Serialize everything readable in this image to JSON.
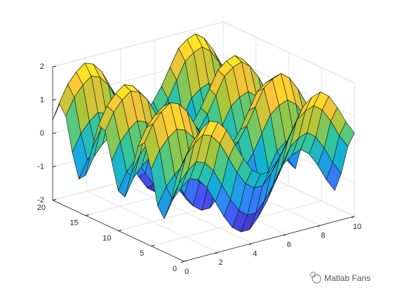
{
  "chart_data": {
    "type": "surface",
    "x": [
      0,
      0.5,
      1,
      1.5,
      2,
      2.5,
      3,
      3.5,
      4,
      4.5,
      5,
      5.5,
      6,
      6.5,
      7,
      7.5,
      8,
      8.5,
      9,
      9.5,
      10
    ],
    "y": [
      0,
      1,
      2,
      3,
      4,
      5,
      6,
      7,
      8,
      9,
      10,
      11,
      12,
      13,
      14,
      15,
      16,
      17,
      18,
      19,
      20
    ],
    "z": [
      [
        1,
        1.5,
        1.8,
        2,
        1.9,
        1.6,
        1.1,
        0.6,
        0.2,
        0,
        0,
        0.3,
        0.7,
        1.2,
        1.7,
        1.9,
        2,
        1.8,
        1.4,
        0.9,
        0.5
      ],
      [
        0.5,
        1,
        1.3,
        1.5,
        1.4,
        1.1,
        0.6,
        0.1,
        -0.3,
        -0.5,
        -0.5,
        -0.2,
        0.2,
        0.7,
        1.2,
        1.4,
        1.5,
        1.3,
        0.9,
        0.4,
        0
      ],
      [
        -0.4,
        0.1,
        0.4,
        0.6,
        0.5,
        0.2,
        -0.3,
        -0.8,
        -1.2,
        -1.4,
        -1.4,
        -1.1,
        -0.7,
        -0.2,
        0.3,
        0.5,
        0.6,
        0.4,
        0,
        -0.5,
        -0.9
      ],
      [
        -1,
        -0.5,
        -0.2,
        0,
        -0.1,
        -0.4,
        -0.9,
        -1.4,
        -1.8,
        -2,
        -2,
        -1.7,
        -1.3,
        -0.8,
        -0.3,
        -0.1,
        0,
        -0.2,
        -0.6,
        -1.1,
        -1.5
      ],
      [
        -0.7,
        -0.2,
        0.1,
        0.3,
        0.2,
        -0.1,
        -0.6,
        -1.1,
        -1.5,
        -1.7,
        -1.7,
        -1.4,
        -1,
        -0.5,
        0,
        0.2,
        0.3,
        0.1,
        -0.3,
        -0.8,
        -1.2
      ],
      [
        0.3,
        0.8,
        1.1,
        1.3,
        1.2,
        0.9,
        0.4,
        -0.1,
        -0.5,
        -0.7,
        -0.7,
        -0.4,
        0,
        0.5,
        1,
        1.2,
        1.3,
        1.1,
        0.7,
        0.2,
        -0.2
      ],
      [
        1,
        1.5,
        1.8,
        2,
        1.9,
        1.6,
        1.1,
        0.6,
        0.2,
        0,
        0,
        0.3,
        0.7,
        1.2,
        1.7,
        1.9,
        2,
        1.8,
        1.4,
        0.9,
        0.5
      ],
      [
        0.8,
        1.3,
        1.6,
        1.8,
        1.7,
        1.4,
        0.9,
        0.4,
        0,
        -0.2,
        -0.2,
        0.1,
        0.5,
        1,
        1.5,
        1.7,
        1.8,
        1.6,
        1.2,
        0.7,
        0.3
      ],
      [
        -0.1,
        0.4,
        0.7,
        0.9,
        0.8,
        0.5,
        0,
        -0.5,
        -0.9,
        -1.1,
        -1.1,
        -0.8,
        -0.4,
        0.1,
        0.6,
        0.8,
        0.9,
        0.7,
        0.3,
        -0.2,
        -0.6
      ],
      [
        -0.9,
        -0.4,
        -0.1,
        0.1,
        0,
        -0.3,
        -0.8,
        -1.3,
        -1.7,
        -1.9,
        -1.9,
        -1.6,
        -1.2,
        -0.7,
        -0.2,
        0,
        0.1,
        -0.1,
        -0.5,
        -1,
        -1.4
      ],
      [
        -0.8,
        -0.3,
        0,
        0.2,
        0.1,
        -0.2,
        -0.7,
        -1.2,
        -1.6,
        -1.8,
        -1.8,
        -1.5,
        -1.1,
        -0.6,
        -0.1,
        0.1,
        0.2,
        0,
        -0.4,
        -0.9,
        -1.3
      ],
      [
        0,
        0.5,
        0.8,
        1,
        0.9,
        0.6,
        0.1,
        -0.4,
        -0.8,
        -1,
        -1,
        -0.7,
        -0.3,
        0.2,
        0.7,
        0.9,
        1,
        0.8,
        0.4,
        -0.1,
        -0.5
      ],
      [
        0.8,
        1.3,
        1.6,
        1.8,
        1.7,
        1.4,
        0.9,
        0.4,
        0,
        -0.2,
        -0.2,
        0.1,
        0.5,
        1,
        1.5,
        1.7,
        1.8,
        1.6,
        1.2,
        0.7,
        0.3
      ],
      [
        0.9,
        1.4,
        1.7,
        1.9,
        1.8,
        1.5,
        1,
        0.5,
        0.1,
        -0.1,
        -0.1,
        0.2,
        0.6,
        1.1,
        1.6,
        1.8,
        1.9,
        1.7,
        1.3,
        0.8,
        0.4
      ],
      [
        0.1,
        0.6,
        0.9,
        1.1,
        1,
        0.7,
        0.2,
        -0.3,
        -0.7,
        -0.9,
        -0.9,
        -0.6,
        -0.2,
        0.3,
        0.8,
        1,
        1.1,
        0.9,
        0.5,
        0,
        -0.4
      ],
      [
        -0.8,
        -0.3,
        0,
        0.2,
        0.1,
        -0.2,
        -0.7,
        -1.2,
        -1.6,
        -1.8,
        -1.8,
        -1.5,
        -1.1,
        -0.6,
        -0.1,
        0.1,
        0.2,
        0,
        -0.4,
        -0.9,
        -1.3
      ],
      [
        -1,
        -0.5,
        -0.2,
        0,
        -0.1,
        -0.4,
        -0.9,
        -1.4,
        -1.8,
        -2,
        -2,
        -1.7,
        -1.3,
        -0.8,
        -0.3,
        -0.1,
        0,
        -0.2,
        -0.6,
        -1.1,
        -1.5
      ],
      [
        -0.3,
        0.2,
        0.5,
        0.7,
        0.6,
        0.3,
        -0.2,
        -0.7,
        -1.1,
        -1.3,
        -1.3,
        -1,
        -0.6,
        -0.1,
        0.4,
        0.6,
        0.7,
        0.5,
        0.1,
        -0.4,
        -0.8
      ],
      [
        0.7,
        1.2,
        1.5,
        1.7,
        1.6,
        1.3,
        0.8,
        0.3,
        -0.1,
        -0.3,
        -0.3,
        0,
        0.4,
        0.9,
        1.4,
        1.6,
        1.7,
        1.5,
        1.1,
        0.6,
        0.2
      ],
      [
        1,
        1.5,
        1.8,
        2,
        1.9,
        1.6,
        1.1,
        0.6,
        0.2,
        0,
        0,
        0.3,
        0.7,
        1.2,
        1.7,
        1.9,
        2,
        1.8,
        1.4,
        0.9,
        0.5
      ],
      [
        0.4,
        0.9,
        1.2,
        1.4,
        1.3,
        1,
        0.5,
        0,
        -0.4,
        -0.6,
        -0.6,
        -0.3,
        0.1,
        0.6,
        1.1,
        1.3,
        1.4,
        1.2,
        0.8,
        0.3,
        -0.1
      ]
    ],
    "xlim": [
      0,
      10
    ],
    "ylim": [
      0,
      20
    ],
    "zlim": [
      -2,
      2
    ],
    "xticks": [
      0,
      2,
      4,
      6,
      8,
      10
    ],
    "yticks": [
      0,
      5,
      10,
      15,
      20
    ],
    "zticks": [
      -2,
      -1,
      0,
      1,
      2
    ],
    "grid": true,
    "colormap": "parula",
    "watermark": "Matlab Fans"
  }
}
